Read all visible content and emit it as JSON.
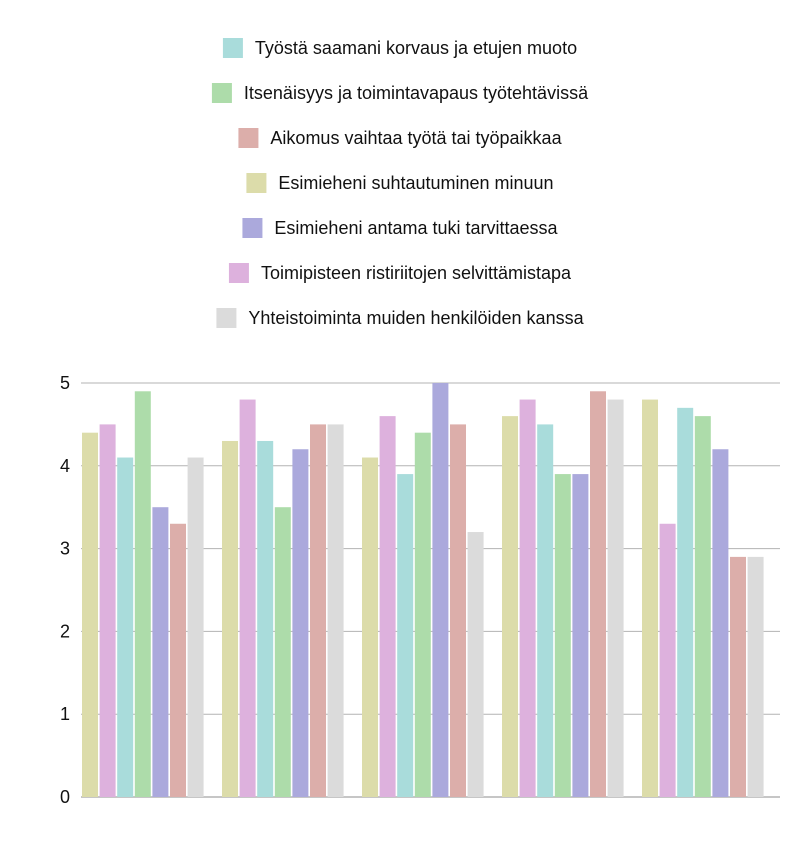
{
  "chart_data": {
    "type": "bar",
    "title": "",
    "xlabel": "",
    "ylabel": "",
    "ylim": [
      0,
      5
    ],
    "yticks": [
      0,
      1,
      2,
      3,
      4,
      5
    ],
    "grid": true,
    "legend_position": "top-center",
    "categories": [
      "",
      "",
      "",
      "",
      ""
    ],
    "series": [
      {
        "name": "Esimieheni suhtautuminen minuun",
        "color": "#dcdcaa",
        "values": [
          4.4,
          4.3,
          4.1,
          4.6,
          4.8
        ]
      },
      {
        "name": "Toimipisteen ristiriitojen selvittämistapa",
        "color": "#ddb1dd",
        "values": [
          4.5,
          4.8,
          4.6,
          4.8,
          3.3
        ]
      },
      {
        "name": "Työstä saamani korvaus ja etujen muoto",
        "color": "#a9dcdb",
        "values": [
          4.1,
          4.3,
          3.9,
          4.5,
          4.7
        ]
      },
      {
        "name": "Itsenäisyys ja toimintavapaus työtehtävissä",
        "color": "#addcaa",
        "values": [
          4.9,
          3.5,
          4.4,
          3.9,
          4.6
        ]
      },
      {
        "name": "Esimieheni antama tuki tarvittaessa",
        "color": "#aba9dc",
        "values": [
          3.5,
          4.2,
          5.0,
          3.9,
          4.2
        ]
      },
      {
        "name": "Aikomus vaihtaa työtä tai työpaikkaa",
        "color": "#dcaeaa",
        "values": [
          3.3,
          4.5,
          4.5,
          4.9,
          2.9
        ]
      },
      {
        "name": "Yhteistoiminta muiden henkilöiden kanssa",
        "color": "#dbdbdb",
        "values": [
          4.1,
          4.5,
          3.2,
          4.8,
          2.9
        ]
      }
    ],
    "legend_order": [
      2,
      3,
      5,
      0,
      4,
      1,
      6
    ]
  }
}
